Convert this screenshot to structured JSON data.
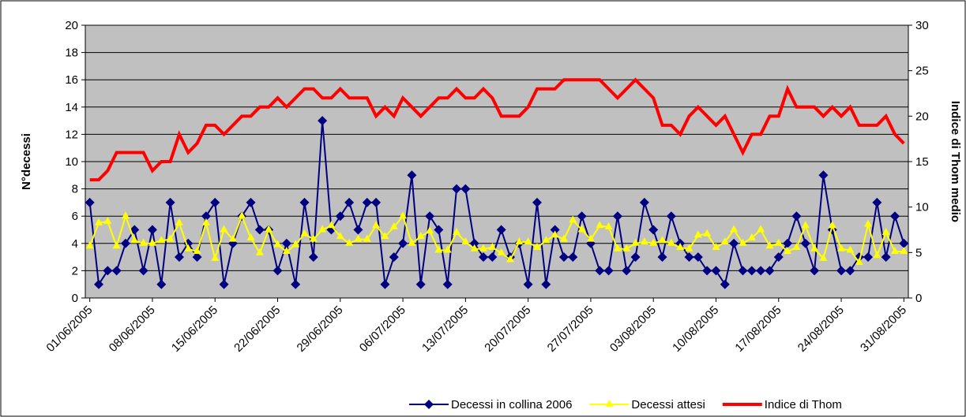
{
  "chart_data": {
    "type": "line",
    "categories": [
      "01/06/2005",
      null,
      null,
      null,
      null,
      null,
      null,
      "08/06/2005",
      null,
      null,
      null,
      null,
      null,
      null,
      "15/06/2005",
      null,
      null,
      null,
      null,
      null,
      null,
      "22/06/2005",
      null,
      null,
      null,
      null,
      null,
      null,
      "29/06/2005",
      null,
      null,
      null,
      null,
      null,
      null,
      "06/07/2005",
      null,
      null,
      null,
      null,
      null,
      null,
      "13/07/2005",
      null,
      null,
      null,
      null,
      null,
      null,
      "20/07/2005",
      null,
      null,
      null,
      null,
      null,
      null,
      "27/07/2005",
      null,
      null,
      null,
      null,
      null,
      null,
      "03/08/2005",
      null,
      null,
      null,
      null,
      null,
      null,
      "10/08/2005",
      null,
      null,
      null,
      null,
      null,
      null,
      "17/08/2005",
      null,
      null,
      null,
      null,
      null,
      null,
      "24/08/2005",
      null,
      null,
      null,
      null,
      null,
      null,
      "31/08/2005"
    ],
    "series": [
      {
        "name": "Decessi in collina 2006",
        "color": "#000080",
        "marker": "diamond",
        "values": [
          7,
          1,
          2,
          2,
          4,
          5,
          2,
          5,
          1,
          7,
          3,
          4,
          3,
          6,
          7,
          1,
          4,
          6,
          7,
          5,
          5,
          2,
          4,
          1,
          7,
          3,
          13,
          5,
          6,
          7,
          5,
          7,
          7,
          1,
          3,
          4,
          9,
          1,
          6,
          5,
          1,
          8,
          8,
          4,
          3,
          3,
          5,
          3,
          4,
          1,
          7,
          1,
          5,
          3,
          3,
          6,
          4,
          2,
          2,
          6,
          2,
          3,
          7,
          5,
          3,
          6,
          4,
          3,
          3,
          2,
          2,
          1,
          4,
          2,
          2,
          2,
          2,
          3,
          4,
          6,
          4,
          2,
          9,
          5,
          2,
          2,
          3,
          3,
          7,
          3,
          6,
          4
        ]
      },
      {
        "name": "Decessi attesi",
        "color": "#ffff00",
        "marker": "triangle",
        "values": [
          3.8,
          5.5,
          5.6,
          3.8,
          6.0,
          4.2,
          4.0,
          4.0,
          4.2,
          4.3,
          5.5,
          3.6,
          3.4,
          5.5,
          2.9,
          5.0,
          4.3,
          6.0,
          4.4,
          3.3,
          5.0,
          3.9,
          3.4,
          3.9,
          4.7,
          4.3,
          5.0,
          5.3,
          4.5,
          4.0,
          4.3,
          4.3,
          5.3,
          4.5,
          5.2,
          6.0,
          4.0,
          4.5,
          4.9,
          3.5,
          3.5,
          4.8,
          4.1,
          3.6,
          3.6,
          3.7,
          3.3,
          2.8,
          4.1,
          4.1,
          3.7,
          4.2,
          4.6,
          4.3,
          5.7,
          5.0,
          4.3,
          5.3,
          5.2,
          3.6,
          3.6,
          4.0,
          4.1,
          4.0,
          4.2,
          4.0,
          3.7,
          3.6,
          4.6,
          4.7,
          3.7,
          4.1,
          5.0,
          4.0,
          4.4,
          5.0,
          3.8,
          4.0,
          3.4,
          3.7,
          5.3,
          3.6,
          2.9,
          5.3,
          3.6,
          3.5,
          2.6,
          5.4,
          3.1,
          4.8,
          3.4,
          3.4
        ]
      },
      {
        "name": "Indice di Thom",
        "color": "#ff0000",
        "axis": "y2",
        "values": [
          13,
          13,
          14,
          16,
          16,
          16,
          16,
          14,
          15,
          15,
          18,
          16,
          17,
          19,
          19,
          18,
          19,
          20,
          20,
          21,
          21,
          22,
          21,
          22,
          23,
          23,
          22,
          22,
          23,
          22,
          22,
          22,
          20,
          21,
          20,
          22,
          21,
          20,
          21,
          22,
          22,
          23,
          22,
          22,
          23,
          22,
          20,
          20,
          20,
          21,
          23,
          23,
          23,
          24,
          24,
          24,
          24,
          24,
          23,
          22,
          23,
          24,
          23,
          22,
          19,
          19,
          18,
          20,
          21,
          20,
          19,
          20,
          18,
          16,
          18,
          18,
          20,
          20,
          23,
          21,
          21,
          21,
          20,
          21,
          20,
          21,
          19,
          19,
          19,
          20,
          18,
          17
        ]
      }
    ],
    "ylabel": "N°decessi",
    "y2label": "Indice di Thom medio",
    "ylim": [
      0,
      20
    ],
    "yticks": [
      0,
      2,
      4,
      6,
      8,
      10,
      12,
      14,
      16,
      18,
      20
    ],
    "y2lim": [
      0,
      30
    ],
    "y2ticks": [
      0,
      5,
      10,
      15,
      20,
      25,
      30
    ],
    "grid": true,
    "legend": "bottom"
  }
}
